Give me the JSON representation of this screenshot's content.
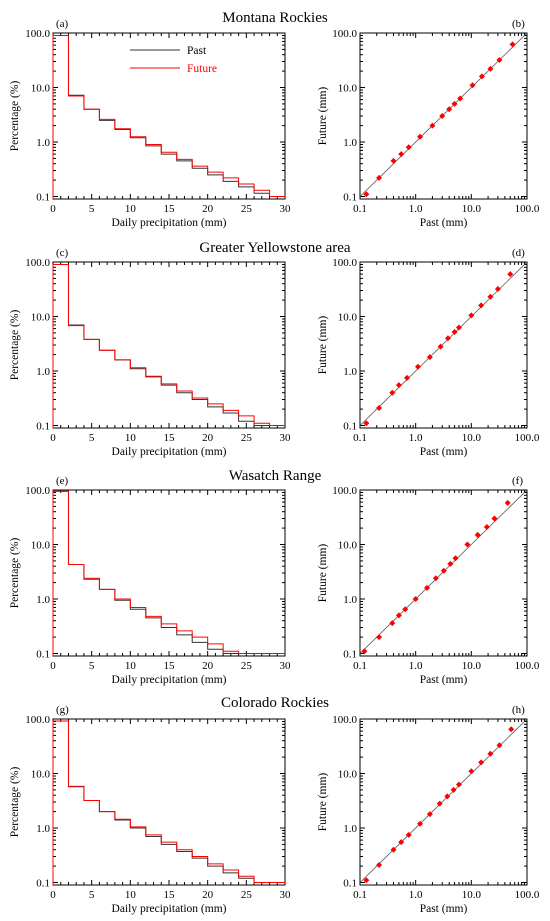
{
  "colors": {
    "past": "#333333",
    "future": "#ff0000",
    "axis": "#000000"
  },
  "chart_data": [
    {
      "type": "line",
      "panel": "(a)",
      "row_title": "Montana Rockies",
      "xlabel": "Daily precipitation (mm)",
      "ylabel": "Percentage (%)",
      "yscale": "log",
      "xlim": [
        0,
        30
      ],
      "ylim": [
        0.09,
        100
      ],
      "x_ticks": [
        "0",
        "5",
        "10",
        "15",
        "20",
        "25",
        "30"
      ],
      "y_ticks": [
        "0.1",
        "1.0",
        "10.0",
        "100.0"
      ],
      "legend": {
        "position": "top-center",
        "entries": [
          "Past",
          "Future"
        ]
      },
      "bin_edges": [
        0,
        2,
        4,
        6,
        8,
        10,
        12,
        14,
        16,
        18,
        20,
        22,
        24,
        26,
        28,
        30
      ],
      "series": [
        {
          "name": "Past",
          "values": [
            90,
            7.2,
            4.0,
            2.5,
            1.7,
            1.2,
            0.85,
            0.6,
            0.45,
            0.33,
            0.25,
            0.19,
            0.15,
            0.115,
            0.1
          ]
        },
        {
          "name": "Future",
          "values": [
            90,
            7.0,
            4.0,
            2.6,
            1.75,
            1.25,
            0.9,
            0.65,
            0.48,
            0.36,
            0.28,
            0.22,
            0.17,
            0.13,
            0.1
          ]
        }
      ]
    },
    {
      "type": "scatter",
      "panel": "(b)",
      "xlabel": "Past (mm)",
      "ylabel": "Future (mm)",
      "xscale": "log",
      "yscale": "log",
      "xlim": [
        0.1,
        100
      ],
      "ylim": [
        0.09,
        100
      ],
      "x_ticks": [
        "0.1",
        "1.0",
        "10.0",
        "100.0"
      ],
      "y_ticks": [
        "0.1",
        "1.0",
        "10.0",
        "100.0"
      ],
      "x": [
        0.13,
        0.22,
        0.4,
        0.55,
        0.75,
        1.2,
        2.0,
        3.0,
        4.0,
        5.0,
        6.3,
        10.5,
        15.5,
        22,
        32,
        55
      ],
      "y": [
        0.11,
        0.22,
        0.45,
        0.6,
        0.8,
        1.25,
        2.0,
        3.0,
        4.0,
        5.0,
        6.3,
        11,
        16,
        22,
        32,
        62
      ]
    },
    {
      "type": "line",
      "panel": "(c)",
      "row_title": "Greater Yellowstone area",
      "xlabel": "Daily precipitation (mm)",
      "ylabel": "Percentage (%)",
      "yscale": "log",
      "xlim": [
        0,
        30
      ],
      "ylim": [
        0.09,
        100
      ],
      "x_ticks": [
        "0",
        "5",
        "10",
        "15",
        "20",
        "25",
        "30"
      ],
      "y_ticks": [
        "0.1",
        "1.0",
        "10.0",
        "100.0"
      ],
      "bin_edges": [
        0,
        2,
        4,
        6,
        8,
        10,
        12,
        14,
        16,
        18,
        20,
        22,
        24,
        26,
        28,
        30
      ],
      "series": [
        {
          "name": "Past",
          "values": [
            90,
            7.0,
            3.8,
            2.4,
            1.6,
            1.1,
            0.78,
            0.55,
            0.4,
            0.3,
            0.22,
            0.17,
            0.12,
            0.1,
            0.1
          ]
        },
        {
          "name": "Future",
          "values": [
            90,
            6.8,
            3.8,
            2.4,
            1.6,
            1.15,
            0.8,
            0.58,
            0.43,
            0.32,
            0.25,
            0.19,
            0.15,
            0.11,
            0.1
          ]
        }
      ]
    },
    {
      "type": "scatter",
      "panel": "(d)",
      "xlabel": "Past (mm)",
      "ylabel": "Future (mm)",
      "xscale": "log",
      "yscale": "log",
      "xlim": [
        0.1,
        100
      ],
      "ylim": [
        0.09,
        100
      ],
      "x_ticks": [
        "0.1",
        "1.0",
        "10.0",
        "100.0"
      ],
      "y_ticks": [
        "0.1",
        "1.0",
        "10.0",
        "100.0"
      ],
      "x": [
        0.13,
        0.22,
        0.38,
        0.5,
        0.7,
        1.1,
        1.8,
        2.8,
        3.8,
        5.0,
        6.0,
        10,
        15,
        22,
        30,
        50
      ],
      "y": [
        0.11,
        0.21,
        0.4,
        0.55,
        0.75,
        1.2,
        1.8,
        2.8,
        4.0,
        5.2,
        6.3,
        10.5,
        16,
        23,
        32,
        60
      ]
    },
    {
      "type": "line",
      "panel": "(e)",
      "row_title": "Wasatch Range",
      "xlabel": "Daily precipitation (mm)",
      "ylabel": "Percentage (%)",
      "yscale": "log",
      "xlim": [
        0,
        30
      ],
      "ylim": [
        0.09,
        100
      ],
      "x_ticks": [
        "0",
        "5",
        "10",
        "15",
        "20",
        "25",
        "30"
      ],
      "y_ticks": [
        "0.1",
        "1.0",
        "10.0",
        "100.0"
      ],
      "bin_edges": [
        0,
        2,
        4,
        6,
        8,
        10,
        12,
        14,
        16,
        18,
        20,
        22,
        24,
        26,
        28,
        30
      ],
      "series": [
        {
          "name": "Past",
          "values": [
            95,
            4.3,
            2.3,
            1.5,
            0.95,
            0.65,
            0.45,
            0.3,
            0.22,
            0.16,
            0.12,
            0.1,
            0.1,
            0.1,
            0.1
          ]
        },
        {
          "name": "Future",
          "values": [
            95,
            4.3,
            2.4,
            1.5,
            1.0,
            0.7,
            0.48,
            0.35,
            0.26,
            0.2,
            0.15,
            0.11,
            0.1,
            0.1,
            0.1
          ]
        }
      ]
    },
    {
      "type": "scatter",
      "panel": "(f)",
      "xlabel": "Past (mm)",
      "ylabel": "Future (mm)",
      "xscale": "log",
      "yscale": "log",
      "xlim": [
        0.1,
        100
      ],
      "ylim": [
        0.09,
        100
      ],
      "x_ticks": [
        "0.1",
        "1.0",
        "10.0",
        "100.0"
      ],
      "y_ticks": [
        "0.1",
        "1.0",
        "10.0",
        "100.0"
      ],
      "x": [
        0.12,
        0.22,
        0.38,
        0.5,
        0.65,
        1.0,
        1.6,
        2.3,
        3.2,
        4.2,
        5.2,
        8.5,
        13,
        19,
        26,
        45
      ],
      "y": [
        0.11,
        0.2,
        0.36,
        0.5,
        0.65,
        1.0,
        1.6,
        2.4,
        3.3,
        4.4,
        5.6,
        10,
        15,
        21,
        30,
        58
      ]
    },
    {
      "type": "line",
      "panel": "(g)",
      "row_title": "Colorado Rockies",
      "xlabel": "Daily precipitation (mm)",
      "ylabel": "Percentage (%)",
      "yscale": "log",
      "xlim": [
        0,
        30
      ],
      "ylim": [
        0.09,
        100
      ],
      "x_ticks": [
        "0",
        "5",
        "10",
        "15",
        "20",
        "25",
        "30"
      ],
      "y_ticks": [
        "0.1",
        "1.0",
        "10.0",
        "100.0"
      ],
      "bin_edges": [
        0,
        2,
        4,
        6,
        8,
        10,
        12,
        14,
        16,
        18,
        20,
        22,
        24,
        26,
        28,
        30
      ],
      "series": [
        {
          "name": "Past",
          "values": [
            92,
            5.8,
            3.2,
            2.0,
            1.4,
            1.0,
            0.7,
            0.5,
            0.37,
            0.28,
            0.2,
            0.15,
            0.12,
            0.1,
            0.1
          ]
        },
        {
          "name": "Future",
          "values": [
            92,
            5.7,
            3.2,
            2.0,
            1.45,
            1.05,
            0.75,
            0.55,
            0.4,
            0.3,
            0.22,
            0.17,
            0.13,
            0.1,
            0.1
          ]
        }
      ]
    },
    {
      "type": "scatter",
      "panel": "(h)",
      "xlabel": "Past (mm)",
      "ylabel": "Future (mm)",
      "xscale": "log",
      "yscale": "log",
      "xlim": [
        0.1,
        100
      ],
      "ylim": [
        0.09,
        100
      ],
      "x_ticks": [
        "0.1",
        "1.0",
        "10.0",
        "100.0"
      ],
      "y_ticks": [
        "0.1",
        "1.0",
        "10.0",
        "100.0"
      ],
      "x": [
        0.13,
        0.22,
        0.4,
        0.55,
        0.75,
        1.2,
        1.8,
        2.7,
        3.7,
        4.8,
        6.0,
        10,
        15,
        22,
        32,
        52
      ],
      "y": [
        0.11,
        0.21,
        0.4,
        0.55,
        0.75,
        1.2,
        1.8,
        2.8,
        3.8,
        5.0,
        6.3,
        11,
        16,
        23,
        33,
        65
      ]
    }
  ]
}
